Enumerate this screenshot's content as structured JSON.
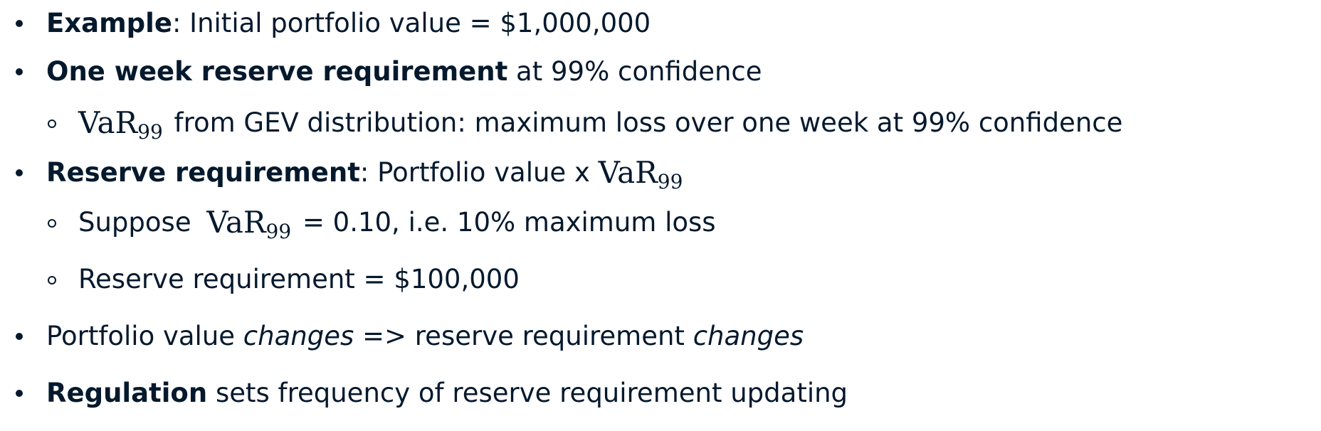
{
  "bullets": {
    "b1": {
      "bold": "Example",
      "text": ": Initial portfolio value = $1,000,000"
    },
    "b2": {
      "bold": "One week reserve requirement",
      "text": " at 99% confidence",
      "sub1": {
        "var": "VaR",
        "sub": "99",
        "text": " from GEV distribution: maximum loss over one week at 99% confidence"
      }
    },
    "b3": {
      "bold": "Reserve requirement",
      "text": ": Portfolio value x ",
      "var": "VaR",
      "sub": "99",
      "sub1": {
        "pre": "Suppose ",
        "var": "VaR",
        "sub": "99",
        "text": " = 0.10, i.e. 10% maximum loss"
      },
      "sub2": {
        "text": "Reserve requirement = $100,000"
      }
    },
    "b4": {
      "t1": "Portfolio value ",
      "i1": "changes",
      "t2": " => reserve requirement ",
      "i2": "changes"
    },
    "b5": {
      "bold": "Regulation",
      "text": " sets frequency of reserve requirement updating"
    }
  }
}
